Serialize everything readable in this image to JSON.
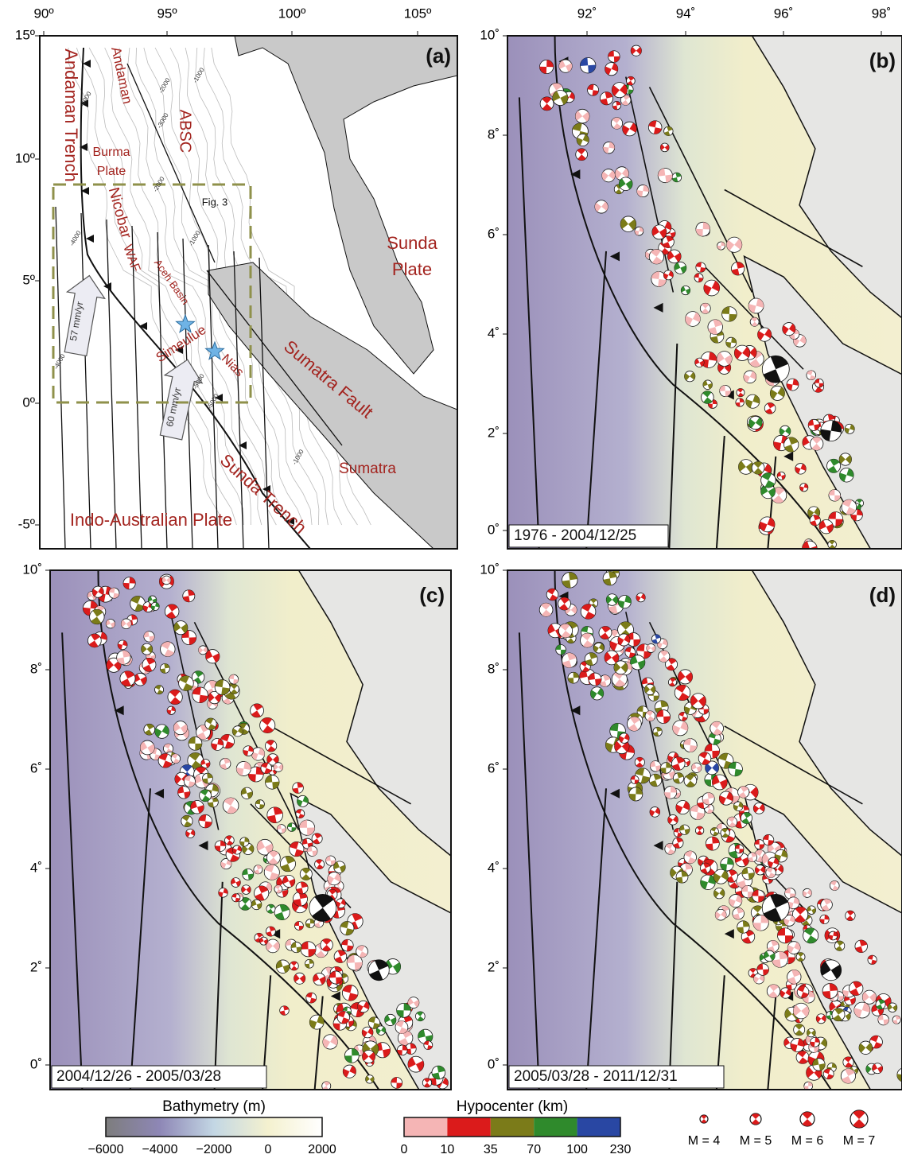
{
  "panels": [
    {
      "label": "(a)",
      "x_ticks": [
        "90º",
        "95º",
        "100º",
        "105º"
      ],
      "y_ticks": [
        "15º",
        "10º",
        "5º",
        "0º",
        "-5º"
      ],
      "annotations": [
        "Andaman Trench",
        "Andaman",
        "Burma",
        "Plate",
        "ABSC",
        "Nicobar",
        "WAF",
        "Aceh Basin",
        "Simeulue",
        "Nias",
        "Sumatra Fault",
        "Sumatra",
        "Sunda",
        "Plate",
        "Sunda Trench",
        "Indo-Australian Plate",
        "57 mm/yr",
        "60 mm/yr",
        "Fig. 3"
      ],
      "contour_labels": [
        "-4000",
        "-2000",
        "-1000",
        "-3000",
        "-2000",
        "-1000",
        "-4000",
        "-5000",
        "-5000",
        "-1000",
        "-4000"
      ]
    },
    {
      "label": "(b)",
      "period": "1976 - 2004/12/25",
      "x_ticks": [
        "92˚",
        "94˚",
        "96˚",
        "98˚"
      ],
      "y_ticks": [
        "10˚",
        "8˚",
        "6˚",
        "4˚",
        "2˚",
        "0˚"
      ]
    },
    {
      "label": "(c)",
      "period": "2004/12/26 - 2005/03/28",
      "y_ticks": [
        "10˚",
        "8˚",
        "6˚",
        "4˚",
        "2˚",
        "0˚"
      ]
    },
    {
      "label": "(d)",
      "period": "2005/03/28 - 2011/12/31",
      "y_ticks": [
        "10˚",
        "8˚",
        "6˚",
        "4˚",
        "2˚",
        "0˚"
      ]
    }
  ],
  "legend": {
    "bathymetry": {
      "title": "Bathymetry (m)",
      "ticks": [
        "−6000",
        "−4000",
        "−2000",
        "0",
        "2000"
      ],
      "colors": [
        "#7d7d7d",
        "#8e87b6",
        "#c3d7e4",
        "#f4f1cf",
        "#ffffff"
      ]
    },
    "hypocenter": {
      "title": "Hypocenter (km)",
      "ticks": [
        "0",
        "10",
        "35",
        "70",
        "100",
        "230"
      ],
      "colors": [
        "#f5b5b5",
        "#db1b1b",
        "#7b7b19",
        "#2f8a2c",
        "#2947a3"
      ]
    },
    "magnitudes": [
      "M = 4",
      "M = 5",
      "M = 6",
      "M = 7"
    ]
  }
}
